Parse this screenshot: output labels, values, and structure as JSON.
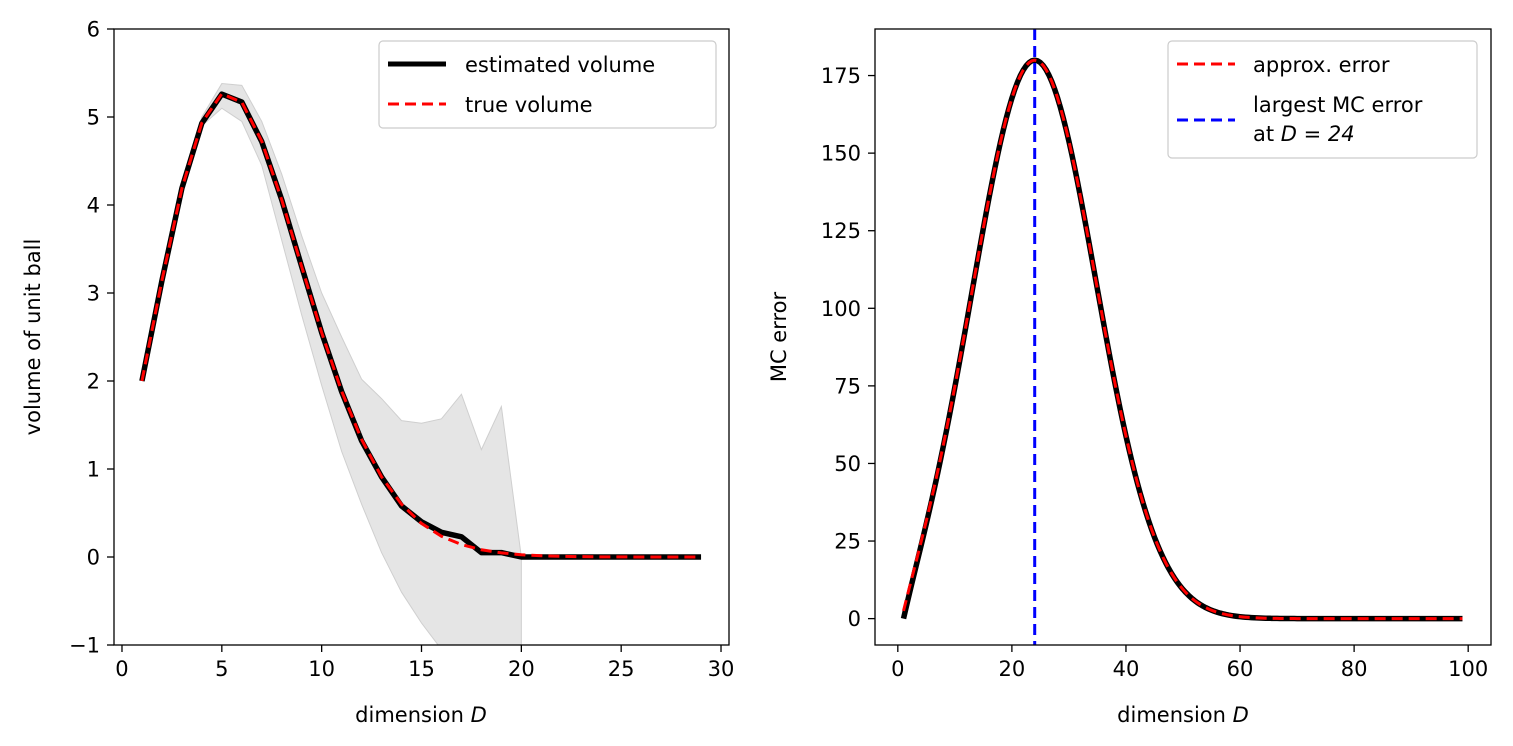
{
  "chart_data": [
    {
      "type": "line",
      "xlabel": "dimension D",
      "ylabel": "volume of unit ball",
      "xlim": [
        -0.4,
        30.4
      ],
      "ylim": [
        -1,
        6
      ],
      "xticks": [
        0,
        5,
        10,
        15,
        20,
        25,
        30
      ],
      "yticks": [
        -1,
        0,
        1,
        2,
        3,
        4,
        5,
        6
      ],
      "xtick_labels": [
        "0",
        "5",
        "10",
        "15",
        "20",
        "25",
        "30"
      ],
      "ytick_labels": [
        "−1",
        "0",
        "1",
        "2",
        "3",
        "4",
        "5",
        "6"
      ],
      "legend_placement": "top-right",
      "grid": false,
      "x": [
        1,
        2,
        3,
        4,
        5,
        6,
        7,
        8,
        9,
        10,
        11,
        12,
        13,
        14,
        15,
        16,
        17,
        18,
        19,
        20,
        21,
        22,
        23,
        24,
        25,
        26,
        27,
        28,
        29
      ],
      "series": [
        {
          "name": "estimated volume",
          "color": "#000000",
          "style": "solid",
          "values": [
            2.0,
            3.14,
            4.19,
            4.93,
            5.26,
            5.17,
            4.72,
            4.06,
            3.3,
            2.55,
            1.88,
            1.32,
            0.91,
            0.58,
            0.4,
            0.28,
            0.23,
            0.05,
            0.05,
            0.0,
            0.0,
            0.0,
            0.0,
            0.0,
            0.0,
            0.0,
            0.0,
            0.0,
            0.0
          ]
        },
        {
          "name": "true volume",
          "color": "#ff0000",
          "style": "dashed",
          "values": [
            2.0,
            3.1416,
            4.1888,
            4.9348,
            5.2638,
            5.1677,
            4.7248,
            4.0587,
            3.2985,
            2.5502,
            1.8841,
            1.3353,
            0.9106,
            0.5993,
            0.3814,
            0.2353,
            0.141,
            0.0821,
            0.0466,
            0.0258,
            0.0139,
            0.0073,
            0.0038,
            0.0019,
            0.0009,
            0.0004,
            0.0002,
            0.0001,
            0.0
          ]
        }
      ],
      "band": {
        "color": "#e5e5e5",
        "lower": [
          2.0,
          3.14,
          4.19,
          4.9,
          5.1,
          4.95,
          4.45,
          3.6,
          2.75,
          1.95,
          1.2,
          0.6,
          0.05,
          -0.4,
          -0.75,
          -1.05,
          -1.2,
          -1.3,
          -1.35,
          -1.3
        ],
        "upper": [
          2.0,
          3.14,
          4.19,
          5.0,
          5.38,
          5.36,
          4.95,
          4.35,
          3.65,
          3.0,
          2.5,
          2.02,
          1.8,
          1.55,
          1.52,
          1.57,
          1.85,
          1.22,
          1.71,
          0.0
        ]
      }
    },
    {
      "type": "line",
      "xlabel": "dimension D",
      "ylabel": "MC error",
      "xlim": [
        -4,
        104
      ],
      "ylim": [
        -8.5,
        190
      ],
      "xticks": [
        0,
        20,
        40,
        60,
        80,
        100
      ],
      "yticks": [
        0,
        25,
        50,
        75,
        100,
        125,
        150,
        175
      ],
      "xtick_labels": [
        "0",
        "20",
        "40",
        "60",
        "80",
        "100"
      ],
      "ytick_labels": [
        "0",
        "25",
        "50",
        "75",
        "100",
        "125",
        "150",
        "175"
      ],
      "legend_placement": "top-right",
      "grid": false,
      "x_start": 1,
      "x_end": 99,
      "vline": {
        "x": 24,
        "color": "#0000ff",
        "style": "dashed"
      },
      "series": [
        {
          "name": "",
          "color": "#000000",
          "style": "solid",
          "peak_x": 24,
          "peak_value": 180,
          "width": 10.7,
          "start_value": 0
        },
        {
          "name": "approx. error",
          "color": "#ff0000",
          "style": "dashed",
          "peak_x": 24,
          "peak_value": 180,
          "width": 10.7,
          "start_value": 2.5
        }
      ],
      "legend_entries": [
        {
          "label": "approx. error",
          "color": "#ff0000",
          "style": "dashed"
        },
        {
          "label_line1": "largest MC error",
          "label_line2_prefix": "at ",
          "label_line2_math": "D = 24",
          "color": "#0000ff",
          "style": "dashed"
        }
      ]
    }
  ],
  "text": {
    "dimension": "dimension ",
    "D": "D"
  }
}
